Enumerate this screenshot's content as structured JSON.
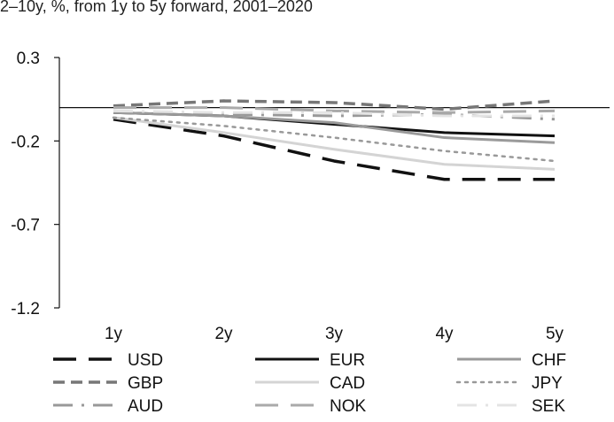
{
  "chart_data": {
    "type": "line",
    "subtitle": "2–10y, %, from 1y to 5y forward, 2001–2020",
    "categories": [
      "1y",
      "2y",
      "3y",
      "4y",
      "5y"
    ],
    "ylim": [
      -1.2,
      0.3
    ],
    "yticks": [
      0.3,
      -0.2,
      -0.7,
      -1.2
    ],
    "ytick_labels": [
      "0.3",
      "-0.2",
      "-0.7",
      "-1.2"
    ],
    "xlabel": "",
    "ylabel": "",
    "legend_position": "bottom",
    "series": [
      {
        "name": "USD",
        "values": [
          -0.07,
          -0.17,
          -0.32,
          -0.43,
          -0.43
        ],
        "color": "#111111",
        "dash": "long-dash",
        "width": 3.5
      },
      {
        "name": "EUR",
        "values": [
          -0.03,
          -0.05,
          -0.1,
          -0.15,
          -0.17
        ],
        "color": "#111111",
        "dash": "solid",
        "width": 3
      },
      {
        "name": "CHF",
        "values": [
          -0.03,
          -0.05,
          -0.09,
          -0.18,
          -0.21
        ],
        "color": "#9a9a9a",
        "dash": "solid",
        "width": 3
      },
      {
        "name": "GBP",
        "values": [
          0.01,
          0.04,
          0.03,
          -0.01,
          0.04
        ],
        "color": "#777777",
        "dash": "dash",
        "width": 3.5
      },
      {
        "name": "CAD",
        "values": [
          -0.06,
          -0.15,
          -0.25,
          -0.34,
          -0.37
        ],
        "color": "#d4d4d4",
        "dash": "solid",
        "width": 3
      },
      {
        "name": "JPY",
        "values": [
          -0.06,
          -0.11,
          -0.18,
          -0.26,
          -0.32
        ],
        "color": "#999999",
        "dash": "dot",
        "width": 2.5
      },
      {
        "name": "AUD",
        "values": [
          -0.02,
          -0.04,
          -0.05,
          -0.04,
          -0.07
        ],
        "color": "#999999",
        "dash": "dash-dot",
        "width": 3
      },
      {
        "name": "NOK",
        "values": [
          0.0,
          0.0,
          -0.02,
          -0.03,
          -0.02
        ],
        "color": "#aaaaaa",
        "dash": "long-dash",
        "width": 3
      },
      {
        "name": "SEK",
        "values": [
          -0.02,
          -0.03,
          -0.03,
          -0.05,
          -0.05
        ],
        "color": "#e4e4e4",
        "dash": "dash-dot",
        "width": 3
      }
    ]
  }
}
